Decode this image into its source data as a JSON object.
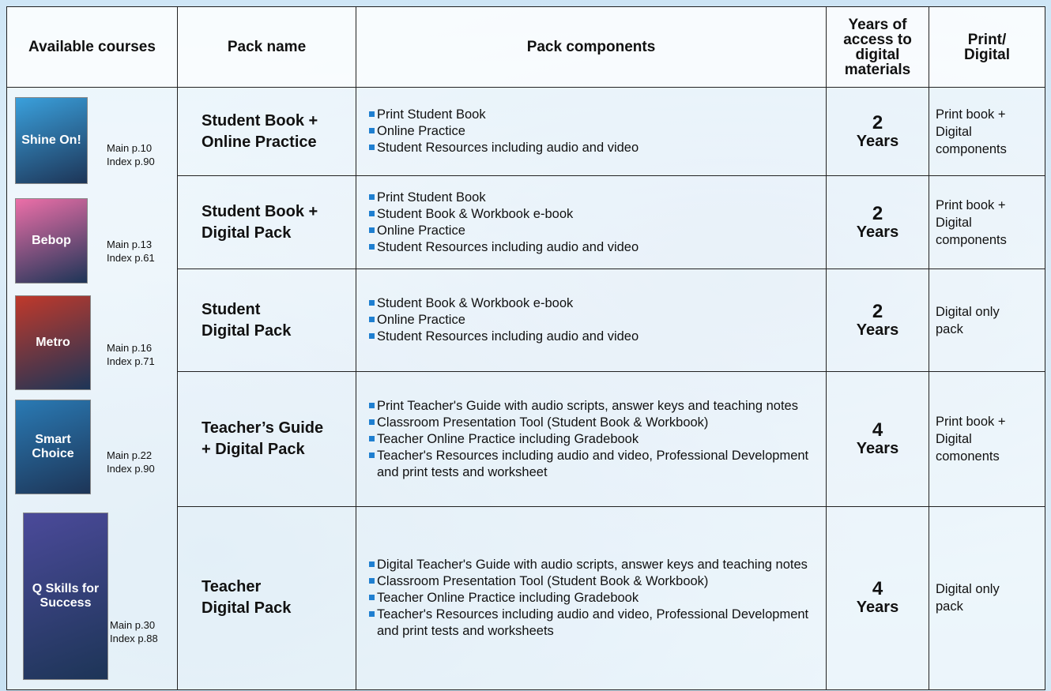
{
  "table": {
    "header": {
      "courses": [
        "Available courses"
      ],
      "pack_name": [
        "Pack name"
      ],
      "components": [
        "Pack components"
      ],
      "years": [
        "Years of",
        "access to",
        "digital",
        "materials"
      ],
      "format": [
        "Print/",
        "Digital"
      ]
    },
    "courses": [
      {
        "cover": "Shine On!",
        "main": "Main p.10",
        "index": "Index p.90"
      },
      {
        "cover": "Bebop",
        "main": "Main p.13",
        "index": "Index p.61"
      },
      {
        "cover": "Metro",
        "main": "Main p.16",
        "index": "Index p.71"
      },
      {
        "cover": "Smart Choice",
        "main": "Main p.22",
        "index": "Index p.90"
      },
      {
        "cover": "Q Skills for Success",
        "main": "Main p.30",
        "index": "Index p.88"
      }
    ],
    "rows": [
      {
        "pack_name": [
          "Student Book +",
          "Online Practice"
        ],
        "components": [
          "Print Student Book",
          "Online Practice",
          "Student Resources including audio and video"
        ],
        "years": {
          "number": "2",
          "unit": "Years"
        },
        "format": [
          "Print book +",
          "Digital",
          "components"
        ]
      },
      {
        "pack_name": [
          "Student Book +",
          "Digital Pack"
        ],
        "components": [
          "Print Student Book",
          "Student Book & Workbook e-book",
          "Online Practice",
          "Student Resources including audio and video"
        ],
        "years": {
          "number": "2",
          "unit": "Years"
        },
        "format": [
          "Print book +",
          "Digital",
          "components"
        ]
      },
      {
        "pack_name": [
          "Student",
          "Digital Pack"
        ],
        "components": [
          "Student Book & Workbook e-book",
          "Online Practice",
          "Student Resources including audio and video"
        ],
        "years": {
          "number": "2",
          "unit": "Years"
        },
        "format": [
          "Digital only",
          "pack"
        ]
      },
      {
        "pack_name": [
          "Teacher’s Guide",
          "+ Digital Pack"
        ],
        "components": [
          "Print Teacher's Guide with audio scripts, answer keys and teaching notes",
          "Classroom Presentation Tool (Student Book & Workbook)",
          "Teacher Online Practice including Gradebook",
          "Teacher's Resources including audio and video, Professional Development and print tests and worksheet"
        ],
        "years": {
          "number": "4",
          "unit": "Years"
        },
        "format": [
          "Print book +",
          "Digital",
          "comonents"
        ]
      },
      {
        "pack_name": [
          "Teacher",
          "Digital Pack"
        ],
        "components": [
          "Digital Teacher's Guide with audio scripts, answer keys and teaching notes",
          "Classroom Presentation Tool (Student Book & Workbook)",
          "Teacher Online Practice including Gradebook",
          "Teacher's Resources including audio and video, Professional Development and print tests and worksheets"
        ],
        "years": {
          "number": "4",
          "unit": "Years"
        },
        "format": [
          "Digital only",
          "pack"
        ]
      }
    ]
  }
}
